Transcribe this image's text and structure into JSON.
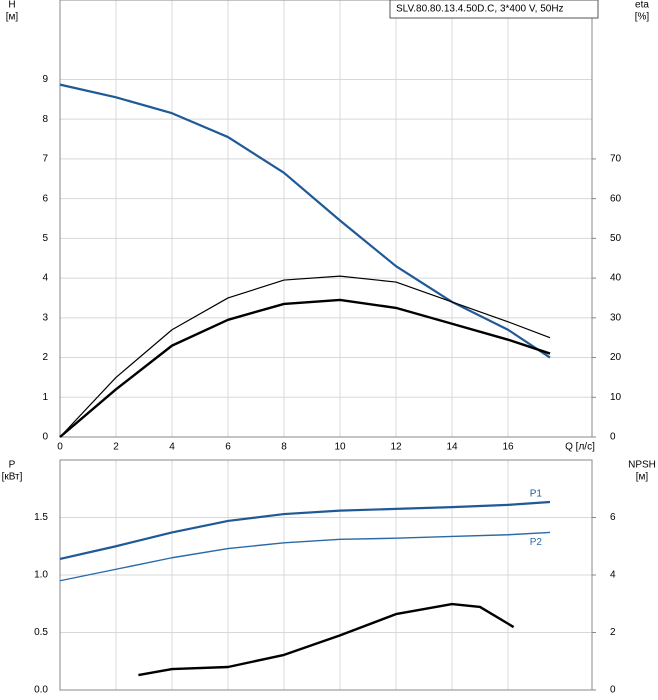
{
  "chart_data": [
    {
      "type": "line",
      "legend_text": "SLV.80.80.13.4.50D.C, 3*400 V, 50Hz",
      "ylabel": [
        "H",
        "[м]"
      ],
      "y2label": [
        "eta",
        "[%]"
      ],
      "xlabel": "Q [л/с]",
      "x": [
        0,
        2,
        4,
        6,
        8,
        10,
        12,
        14,
        16,
        17.5
      ],
      "xlim": [
        0,
        19
      ],
      "xticks": [
        0,
        2,
        4,
        6,
        8,
        10,
        12,
        14,
        16
      ],
      "ylim": [
        0,
        11
      ],
      "yticks": [
        0,
        1,
        2,
        3,
        4,
        5,
        6,
        7,
        8,
        9
      ],
      "y2lim": [
        0,
        110
      ],
      "y2ticks": [
        0,
        10,
        20,
        30,
        40,
        50,
        60,
        70
      ],
      "grid": true,
      "series": [
        {
          "color": "#1f5a96",
          "line_width": 2.2,
          "values": [
            8.87,
            8.55,
            8.15,
            7.55,
            6.65,
            5.45,
            4.3,
            3.4,
            2.7,
            2.0
          ]
        },
        {
          "color": "#000000",
          "line_width": 1.2,
          "axis": "y2",
          "values": [
            0,
            15,
            27,
            35,
            39.5,
            40.5,
            39,
            34,
            29,
            25
          ]
        },
        {
          "color": "#000000",
          "line_width": 2.4,
          "axis": "y2",
          "values": [
            0,
            12,
            23,
            29.5,
            33.5,
            34.5,
            32.5,
            28.5,
            24.5,
            21
          ]
        }
      ]
    },
    {
      "type": "line",
      "ylabel": [
        "P",
        "[кВт]"
      ],
      "y2label": [
        "NPSH",
        "[м]"
      ],
      "x": [
        0,
        2,
        4,
        6,
        8,
        10,
        12,
        14,
        16,
        17.5
      ],
      "xlim": [
        0,
        19
      ],
      "xticks": [
        0,
        2,
        4,
        6,
        8,
        10,
        12,
        14,
        16
      ],
      "ylim": [
        0,
        2
      ],
      "yticks": [
        {
          "value": 0,
          "label": "0.0"
        },
        0.5,
        {
          "value": 1,
          "label": "1.0"
        },
        1.5
      ],
      "y2lim": [
        0,
        8
      ],
      "y2ticks": [
        0,
        2,
        4,
        6
      ],
      "grid": true,
      "series": [
        {
          "name": "P1",
          "color": "#1f5a96",
          "line_width": 2.2,
          "values": [
            1.14,
            1.25,
            1.37,
            1.47,
            1.53,
            1.56,
            1.575,
            1.59,
            1.61,
            1.635
          ]
        },
        {
          "name": "P2",
          "color": "#2a6aa8",
          "line_width": 1.4,
          "values": [
            0.95,
            1.05,
            1.15,
            1.23,
            1.28,
            1.31,
            1.32,
            1.335,
            1.35,
            1.37
          ]
        },
        {
          "color": "#000000",
          "line_width": 2.4,
          "axis": "y2",
          "x": [
            2.8,
            4,
            6,
            8,
            10,
            12,
            14,
            15,
            16.2
          ],
          "values": [
            0.52,
            0.73,
            0.8,
            1.22,
            1.9,
            2.64,
            2.99,
            2.89,
            2.19
          ]
        }
      ]
    }
  ]
}
